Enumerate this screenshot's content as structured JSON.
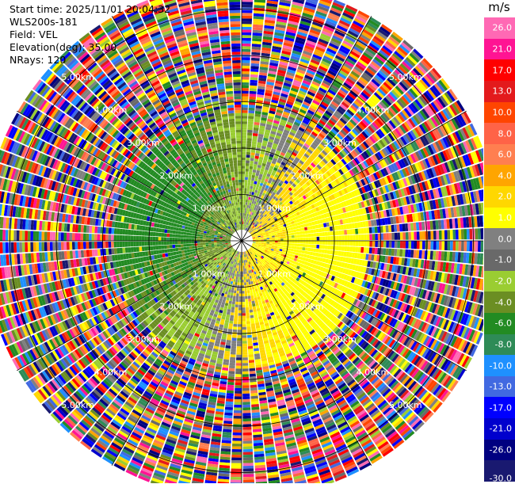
{
  "info": {
    "start_time": "Start time: 2025/11/01 20:04:32",
    "station": "WLS200s-181",
    "field": "Field: VEL",
    "elevation": "Elevation(deg): 35.00",
    "nrays": "NRays: 120"
  },
  "colorbar": {
    "unit": "m/s",
    "ticks": [
      "26.0",
      "21.0",
      "17.0",
      "13.0",
      "10.0",
      "8.0",
      "6.0",
      "4.0",
      "2.0",
      "1.0",
      "0.0",
      "-1.0",
      "-2.0",
      "-4.0",
      "-6.0",
      "-8.0",
      "-10.0",
      "-13.0",
      "-17.0",
      "-21.0",
      "-26.0",
      "-30.0"
    ],
    "colors": [
      "#ff69b4",
      "#ff1493",
      "#ff0000",
      "#e31a1c",
      "#ff4500",
      "#ff6347",
      "#ff7f50",
      "#ffa500",
      "#ffd700",
      "#ffff00",
      "#808080",
      "#696969",
      "#9acd32",
      "#6b8e23",
      "#228b22",
      "#2e8b57",
      "#1e90ff",
      "#4169e1",
      "#0000ff",
      "#0000cd",
      "#000080",
      "#191970"
    ]
  },
  "chart_data": {
    "type": "ppi",
    "title": "",
    "nrays": 120,
    "range_rings_km": [
      1.0,
      2.0,
      3.0,
      4.0,
      5.0
    ],
    "range_ring_labels": [
      "1.00km",
      "2.00km",
      "3.00km",
      "4.00km",
      "5.00km"
    ],
    "max_range_km": 5.6,
    "spokes_deg": [
      0,
      30,
      60,
      90,
      120,
      150,
      180,
      210,
      240,
      270,
      300,
      330
    ],
    "field": "VEL",
    "unit": "m/s",
    "vmin": -30.0,
    "vmax": 30.0
  }
}
